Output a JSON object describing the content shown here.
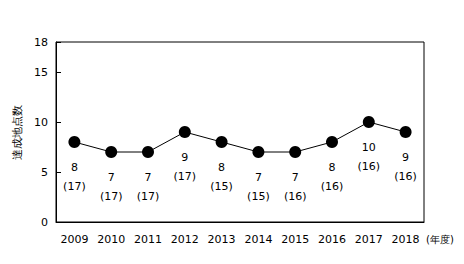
{
  "chart_data": {
    "type": "line",
    "y_label": "達成地点数",
    "x_label": "(年度)",
    "categories": [
      "2009",
      "2010",
      "2011",
      "2012",
      "2013",
      "2014",
      "2015",
      "2016",
      "2017",
      "2018"
    ],
    "values": [
      8,
      7,
      7,
      9,
      8,
      7,
      7,
      8,
      10,
      9
    ],
    "total_labels": [
      "(17)",
      "(17)",
      "(17)",
      "(17)",
      "(15)",
      "(15)",
      "(16)",
      "(16)",
      "(16)",
      "(16)"
    ],
    "color": "#000000",
    "marker": "circle",
    "ylim": [
      0,
      18
    ],
    "yticks": [
      0,
      5,
      10,
      15,
      18
    ],
    "grid": false,
    "data_labels": true
  }
}
